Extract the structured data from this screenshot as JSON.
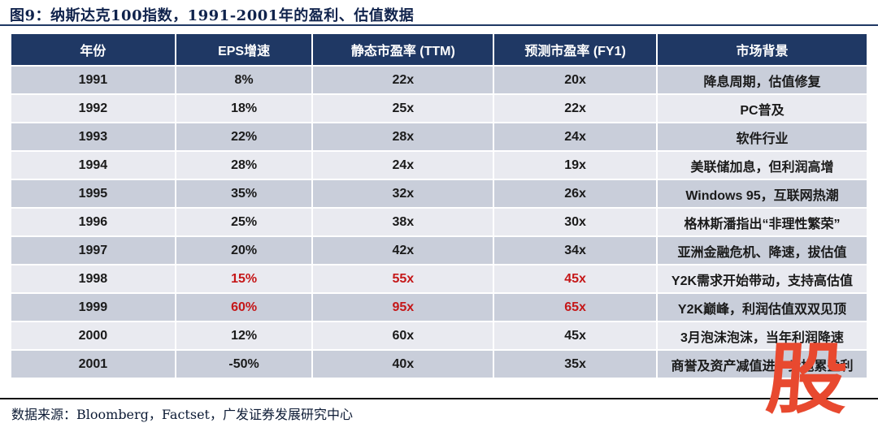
{
  "title": "图9：纳斯达克100指数，1991-2001年的盈利、估值数据",
  "table": {
    "columns": [
      "年份",
      "EPS增速",
      "静态市盈率 (TTM)",
      "预测市盈率 (FY1)",
      "市场背景"
    ],
    "rows": [
      {
        "year": "1991",
        "eps": "8%",
        "ttm": "22x",
        "fy1": "20x",
        "note": "降息周期，估值修复",
        "highlight": false
      },
      {
        "year": "1992",
        "eps": "18%",
        "ttm": "25x",
        "fy1": "22x",
        "note": "PC普及",
        "highlight": false
      },
      {
        "year": "1993",
        "eps": "22%",
        "ttm": "28x",
        "fy1": "24x",
        "note": "软件行业",
        "highlight": false
      },
      {
        "year": "1994",
        "eps": "28%",
        "ttm": "24x",
        "fy1": "19x",
        "note": "美联储加息，但利润高增",
        "highlight": false
      },
      {
        "year": "1995",
        "eps": "35%",
        "ttm": "32x",
        "fy1": "26x",
        "note": "Windows 95，互联网热潮",
        "highlight": false
      },
      {
        "year": "1996",
        "eps": "25%",
        "ttm": "38x",
        "fy1": "30x",
        "note": "格林斯潘指出“非理性繁荣”",
        "highlight": false
      },
      {
        "year": "1997",
        "eps": "20%",
        "ttm": "42x",
        "fy1": "34x",
        "note": "亚洲金融危机、降速，拔估值",
        "highlight": false
      },
      {
        "year": "1998",
        "eps": "15%",
        "ttm": "55x",
        "fy1": "45x",
        "note": "Y2K需求开始带动，支持高估值",
        "highlight": true
      },
      {
        "year": "1999",
        "eps": "60%",
        "ttm": "95x",
        "fy1": "65x",
        "note": "Y2K巅峰，利润估值双双见顶",
        "highlight": true
      },
      {
        "year": "2000",
        "eps": "12%",
        "ttm": "60x",
        "fy1": "45x",
        "note": "3月泡沫泡沫，当年利润降速",
        "highlight": false
      },
      {
        "year": "2001",
        "eps": "-50%",
        "ttm": "40x",
        "fy1": "35x",
        "note": "商誉及资产减值进一步拖累盈利",
        "highlight": false
      }
    ]
  },
  "footer": {
    "source": "数据来源：Bloomberg，Factset，广发证券发展研究中心"
  },
  "watermark": {
    "glyph": "股"
  },
  "colors": {
    "header_bg": "#1F3864",
    "row_dark": "#C9CEDA",
    "row_light": "#E9EAF0",
    "highlight_red": "#C51718",
    "watermark_red": "#E8492F"
  }
}
